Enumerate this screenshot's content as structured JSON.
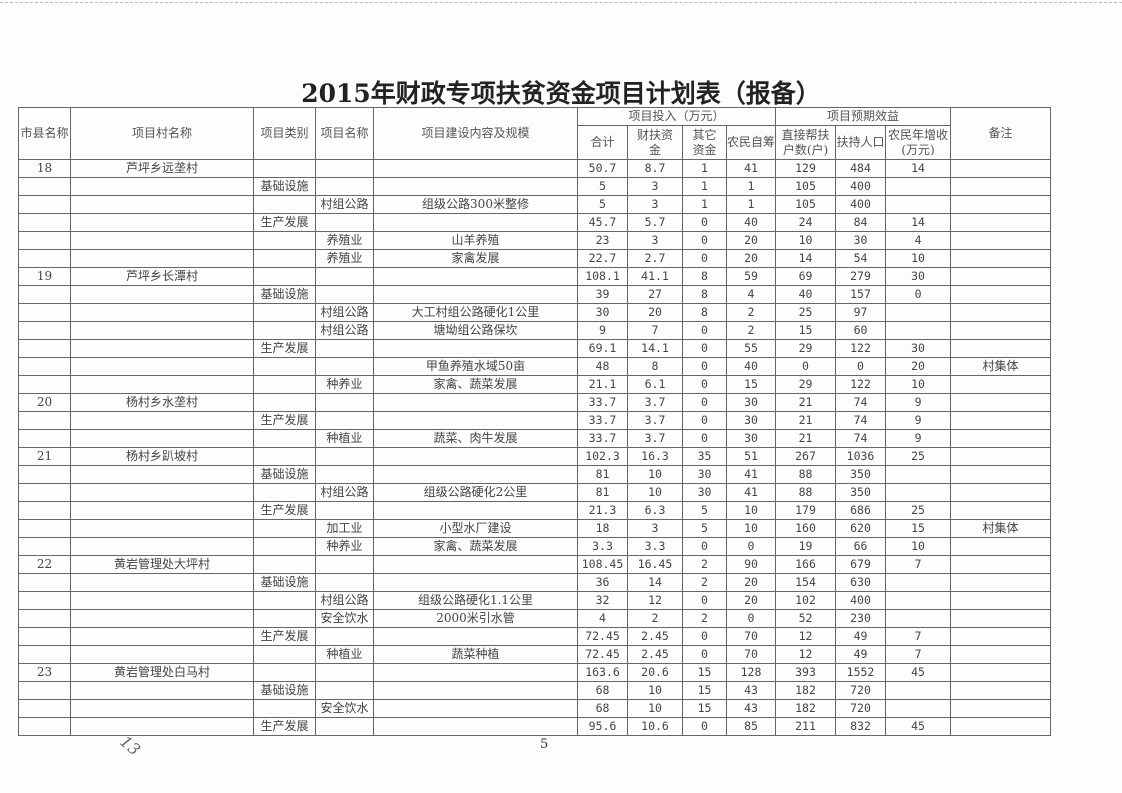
{
  "title": "2015年财政专项扶贫资金项目计划表（报备）",
  "header": {
    "county": "市县名称",
    "village": "项目村名称",
    "category": "项目类别",
    "project": "项目名称",
    "content": "项目建设内容及规模",
    "investment_group": "项目投入（万元）",
    "benefit_group": "项目预期效益",
    "note": "备注",
    "total": "合计",
    "fiscal": "财扶资金",
    "other": "其它资金",
    "self": "农民自筹",
    "households": "直接帮扶户数(户)",
    "people": "扶持人口",
    "income": "农民年增收(万元)"
  },
  "rows": [
    [
      "18",
      "芦坪乡远垄村",
      "",
      "",
      "",
      "50.7",
      "8.7",
      "1",
      "41",
      "129",
      "484",
      "14",
      ""
    ],
    [
      "",
      "",
      "基础设施",
      "",
      "",
      "5",
      "3",
      "1",
      "1",
      "105",
      "400",
      "",
      ""
    ],
    [
      "",
      "",
      "",
      "村组公路",
      "组级公路300米整修",
      "5",
      "3",
      "1",
      "1",
      "105",
      "400",
      "",
      ""
    ],
    [
      "",
      "",
      "生产发展",
      "",
      "",
      "45.7",
      "5.7",
      "0",
      "40",
      "24",
      "84",
      "14",
      ""
    ],
    [
      "",
      "",
      "",
      "养殖业",
      "山羊养殖",
      "23",
      "3",
      "0",
      "20",
      "10",
      "30",
      "4",
      ""
    ],
    [
      "",
      "",
      "",
      "养殖业",
      "家禽发展",
      "22.7",
      "2.7",
      "0",
      "20",
      "14",
      "54",
      "10",
      ""
    ],
    [
      "19",
      "芦坪乡长潭村",
      "",
      "",
      "",
      "108.1",
      "41.1",
      "8",
      "59",
      "69",
      "279",
      "30",
      ""
    ],
    [
      "",
      "",
      "基础设施",
      "",
      "",
      "39",
      "27",
      "8",
      "4",
      "40",
      "157",
      "0",
      ""
    ],
    [
      "",
      "",
      "",
      "村组公路",
      "大工村组公路硬化1公里",
      "30",
      "20",
      "8",
      "2",
      "25",
      "97",
      "",
      ""
    ],
    [
      "",
      "",
      "",
      "村组公路",
      "塘坳组公路保坎",
      "9",
      "7",
      "0",
      "2",
      "15",
      "60",
      "",
      ""
    ],
    [
      "",
      "",
      "生产发展",
      "",
      "",
      "69.1",
      "14.1",
      "0",
      "55",
      "29",
      "122",
      "30",
      ""
    ],
    [
      "",
      "",
      "",
      "",
      "甲鱼养殖水域50亩",
      "48",
      "8",
      "0",
      "40",
      "0",
      "0",
      "20",
      "村集体"
    ],
    [
      "",
      "",
      "",
      "种养业",
      "家禽、蔬菜发展",
      "21.1",
      "6.1",
      "0",
      "15",
      "29",
      "122",
      "10",
      ""
    ],
    [
      "20",
      "杨村乡水垄村",
      "",
      "",
      "",
      "33.7",
      "3.7",
      "0",
      "30",
      "21",
      "74",
      "9",
      ""
    ],
    [
      "",
      "",
      "生产发展",
      "",
      "",
      "33.7",
      "3.7",
      "0",
      "30",
      "21",
      "74",
      "9",
      ""
    ],
    [
      "",
      "",
      "",
      "种植业",
      "蔬菜、肉牛发展",
      "33.7",
      "3.7",
      "0",
      "30",
      "21",
      "74",
      "9",
      ""
    ],
    [
      "21",
      "杨村乡趴坡村",
      "",
      "",
      "",
      "102.3",
      "16.3",
      "35",
      "51",
      "267",
      "1036",
      "25",
      ""
    ],
    [
      "",
      "",
      "基础设施",
      "",
      "",
      "81",
      "10",
      "30",
      "41",
      "88",
      "350",
      "",
      ""
    ],
    [
      "",
      "",
      "",
      "村组公路",
      "组级公路硬化2公里",
      "81",
      "10",
      "30",
      "41",
      "88",
      "350",
      "",
      ""
    ],
    [
      "",
      "",
      "生产发展",
      "",
      "",
      "21.3",
      "6.3",
      "5",
      "10",
      "179",
      "686",
      "25",
      ""
    ],
    [
      "",
      "",
      "",
      "加工业",
      "小型水厂建设",
      "18",
      "3",
      "5",
      "10",
      "160",
      "620",
      "15",
      "村集体"
    ],
    [
      "",
      "",
      "",
      "种养业",
      "家禽、蔬菜发展",
      "3.3",
      "3.3",
      "0",
      "0",
      "19",
      "66",
      "10",
      ""
    ],
    [
      "22",
      "黄岩管理处大坪村",
      "",
      "",
      "",
      "108.45",
      "16.45",
      "2",
      "90",
      "166",
      "679",
      "7",
      ""
    ],
    [
      "",
      "",
      "基础设施",
      "",
      "",
      "36",
      "14",
      "2",
      "20",
      "154",
      "630",
      "",
      ""
    ],
    [
      "",
      "",
      "",
      "村组公路",
      "组级公路硬化1.1公里",
      "32",
      "12",
      "0",
      "20",
      "102",
      "400",
      "",
      ""
    ],
    [
      "",
      "",
      "",
      "安全饮水",
      "2000米引水管",
      "4",
      "2",
      "2",
      "0",
      "52",
      "230",
      "",
      ""
    ],
    [
      "",
      "",
      "生产发展",
      "",
      "",
      "72.45",
      "2.45",
      "0",
      "70",
      "12",
      "49",
      "7",
      ""
    ],
    [
      "",
      "",
      "",
      "种植业",
      "蔬菜种植",
      "72.45",
      "2.45",
      "0",
      "70",
      "12",
      "49",
      "7",
      ""
    ],
    [
      "23",
      "黄岩管理处白马村",
      "",
      "",
      "",
      "163.6",
      "20.6",
      "15",
      "128",
      "393",
      "1552",
      "45",
      ""
    ],
    [
      "",
      "",
      "基础设施",
      "",
      "",
      "68",
      "10",
      "15",
      "43",
      "182",
      "720",
      "",
      ""
    ],
    [
      "",
      "",
      "",
      "安全饮水",
      "",
      "68",
      "10",
      "15",
      "43",
      "182",
      "720",
      "",
      ""
    ],
    [
      "",
      "",
      "生产发展",
      "",
      "",
      "95.6",
      "10.6",
      "0",
      "85",
      "211",
      "832",
      "45",
      ""
    ]
  ],
  "page_number": "5",
  "handwritten_mark": "13"
}
